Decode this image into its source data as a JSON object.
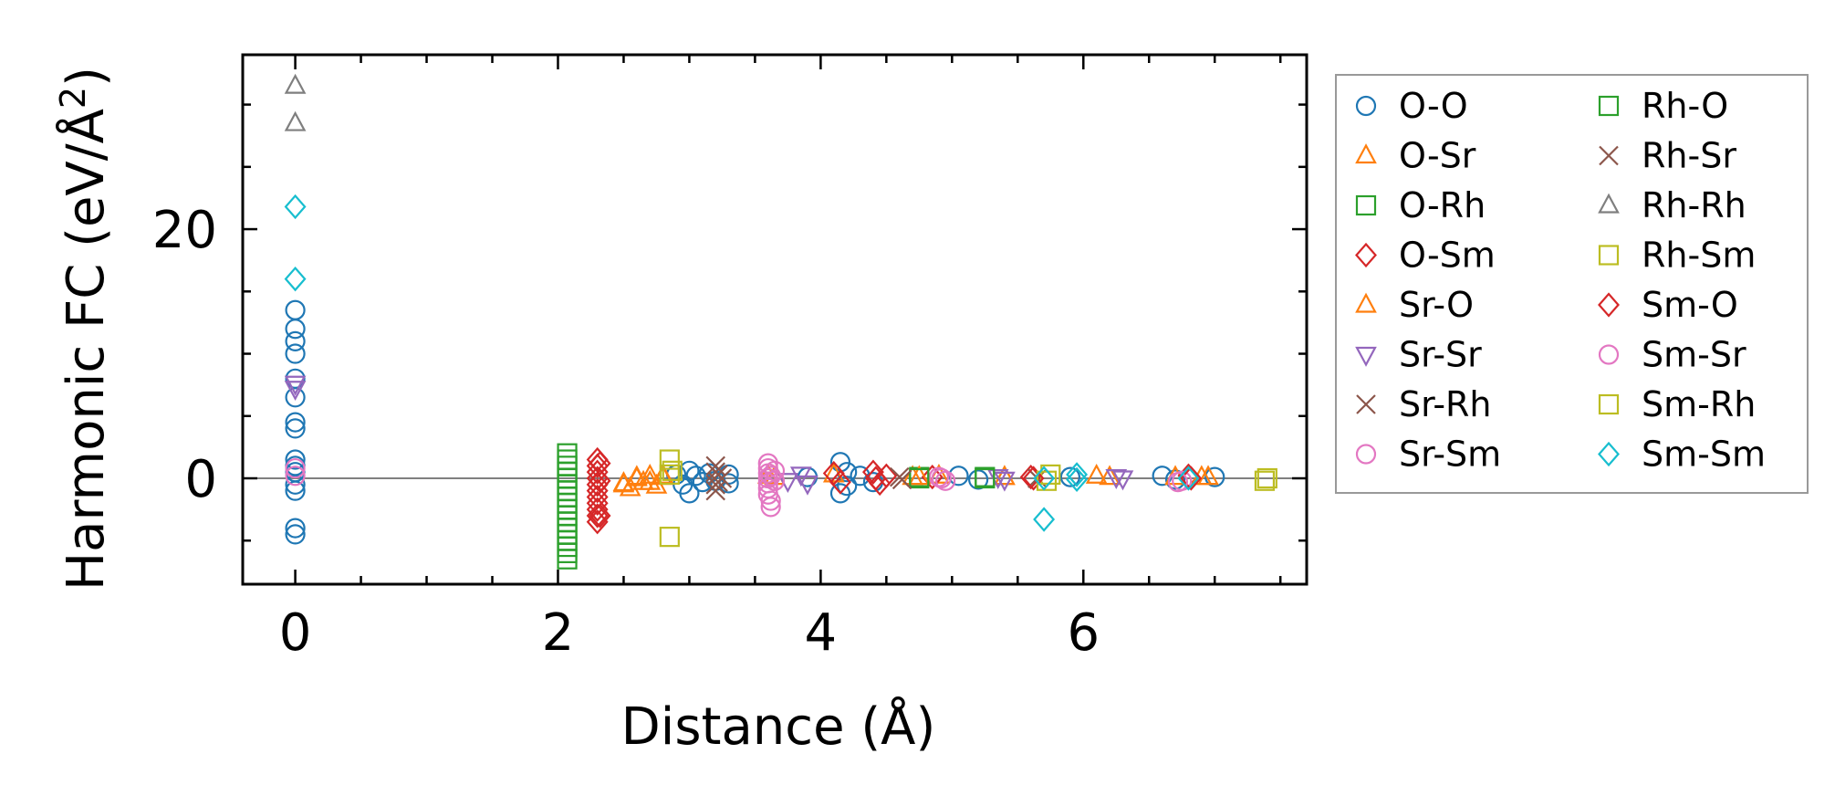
{
  "chart_data": {
    "type": "scatter",
    "title": "",
    "xlabel": "Distance (Å)",
    "ylabel_prefix": "Harmonic FC (eV/Å",
    "ylabel_sup": "2",
    "ylabel_suffix": ")",
    "xlim": [
      -0.4,
      7.7
    ],
    "ylim": [
      -8.5,
      34.0
    ],
    "xticks": [
      0,
      2,
      4,
      6
    ],
    "xtick_labels": [
      "0",
      "2",
      "4",
      "6"
    ],
    "yticks": [
      0,
      20
    ],
    "ytick_labels": [
      "0",
      "20"
    ],
    "x_minor_step": 0.5,
    "y_minor_step": 5,
    "zero_line": true,
    "legend_position": "outside-right",
    "series": [
      {
        "name": "O-O",
        "color": "#1f77b4",
        "marker": "circle",
        "points": [
          [
            0,
            13.5
          ],
          [
            0,
            12
          ],
          [
            0,
            11
          ],
          [
            0,
            10
          ],
          [
            0,
            8
          ],
          [
            0,
            6.5
          ],
          [
            0,
            4.5
          ],
          [
            0,
            4
          ],
          [
            0,
            1.5
          ],
          [
            0,
            1
          ],
          [
            0,
            0.5
          ],
          [
            0,
            -0.5
          ],
          [
            0,
            -1
          ],
          [
            0,
            -4
          ],
          [
            0,
            -4.5
          ],
          [
            2.9,
            0.3
          ],
          [
            2.95,
            -0.5
          ],
          [
            3.0,
            0.6
          ],
          [
            3.0,
            -1.2
          ],
          [
            3.05,
            0.2
          ],
          [
            3.1,
            -0.3
          ],
          [
            3.15,
            0.4
          ],
          [
            3.2,
            -0.2
          ],
          [
            3.3,
            0.3
          ],
          [
            3.3,
            -0.4
          ],
          [
            3.9,
            0.1
          ],
          [
            4.15,
            1.3
          ],
          [
            4.15,
            -1.2
          ],
          [
            4.2,
            0.5
          ],
          [
            4.2,
            -0.6
          ],
          [
            4.3,
            0.2
          ],
          [
            4.4,
            -0.3
          ],
          [
            5.05,
            0.2
          ],
          [
            5.2,
            -0.1
          ],
          [
            5.9,
            0.1
          ],
          [
            6.6,
            0.2
          ],
          [
            6.7,
            -0.1
          ],
          [
            7.0,
            0.1
          ]
        ]
      },
      {
        "name": "O-Sr",
        "color": "#ff7f0e",
        "marker": "triangle-up",
        "points": [
          [
            2.5,
            -0.5
          ],
          [
            2.55,
            -0.8
          ],
          [
            2.6,
            0.1
          ],
          [
            2.65,
            -0.3
          ],
          [
            2.7,
            0.2
          ],
          [
            2.75,
            -0.6
          ],
          [
            2.8,
            0.1
          ],
          [
            3.6,
            0.2
          ],
          [
            4.1,
            0.3
          ],
          [
            4.7,
            0.1
          ],
          [
            4.9,
            0.2
          ],
          [
            5.4,
            0.1
          ],
          [
            6.1,
            0.2
          ],
          [
            6.7,
            0.1
          ],
          [
            6.95,
            0.1
          ]
        ]
      },
      {
        "name": "O-Rh",
        "color": "#2ca02c",
        "marker": "square",
        "points": [
          [
            2.07,
            2.0
          ],
          [
            2.07,
            1.5
          ],
          [
            2.07,
            1.0
          ],
          [
            2.07,
            0.5
          ],
          [
            2.07,
            0.0
          ],
          [
            2.07,
            -0.5
          ],
          [
            2.07,
            -1.0
          ],
          [
            2.07,
            -1.5
          ],
          [
            2.07,
            -2.0
          ],
          [
            2.07,
            -2.5
          ],
          [
            2.07,
            -3.0
          ],
          [
            2.07,
            -3.5
          ],
          [
            2.07,
            -4.0
          ],
          [
            2.07,
            -4.5
          ],
          [
            2.07,
            -5.0
          ],
          [
            2.07,
            -5.5
          ],
          [
            2.07,
            -6.0
          ],
          [
            2.07,
            -6.5
          ],
          [
            4.75,
            0.1
          ],
          [
            5.25,
            0.1
          ]
        ]
      },
      {
        "name": "O-Sm",
        "color": "#d62728",
        "marker": "diamond",
        "points": [
          [
            2.3,
            1.5
          ],
          [
            2.3,
            1.0
          ],
          [
            2.3,
            0.5
          ],
          [
            2.3,
            0.0
          ],
          [
            2.3,
            -0.5
          ],
          [
            2.3,
            -1.0
          ],
          [
            2.3,
            -1.5
          ],
          [
            2.3,
            -2.0
          ],
          [
            2.3,
            -2.5
          ],
          [
            2.3,
            -3.0
          ],
          [
            2.3,
            -3.5
          ],
          [
            4.1,
            0.4
          ],
          [
            4.15,
            -0.3
          ],
          [
            4.4,
            0.5
          ],
          [
            4.45,
            -0.4
          ],
          [
            4.5,
            0.2
          ],
          [
            4.85,
            0.1
          ],
          [
            5.6,
            0.1
          ],
          [
            6.8,
            0.2
          ]
        ]
      },
      {
        "name": "Sr-O",
        "color": "#ff7f0e",
        "marker": "triangle-up",
        "points": [
          [
            2.5,
            -0.4
          ],
          [
            2.6,
            0.0
          ],
          [
            2.7,
            -0.3
          ],
          [
            2.8,
            0.2
          ],
          [
            3.65,
            0.1
          ],
          [
            4.75,
            0.1
          ],
          [
            5.4,
            0.1
          ],
          [
            6.2,
            0.1
          ],
          [
            6.9,
            0.1
          ]
        ]
      },
      {
        "name": "Sr-Sr",
        "color": "#9467bd",
        "marker": "triangle-down",
        "points": [
          [
            0,
            7.6
          ],
          [
            0,
            7.2
          ],
          [
            3.75,
            -0.2
          ],
          [
            3.85,
            0.3
          ],
          [
            3.9,
            -0.4
          ],
          [
            5.35,
            0.1
          ],
          [
            5.4,
            -0.1
          ],
          [
            6.25,
            0.1
          ],
          [
            6.3,
            0.0
          ]
        ]
      },
      {
        "name": "Sr-Rh",
        "color": "#8c564b",
        "marker": "x",
        "points": [
          [
            3.2,
            0.5
          ],
          [
            3.2,
            -0.5
          ],
          [
            3.2,
            1.0
          ],
          [
            3.2,
            -1.0
          ],
          [
            3.25,
            0.0
          ],
          [
            4.6,
            0.1
          ],
          [
            5.65,
            0.0
          ]
        ]
      },
      {
        "name": "Sr-Sm",
        "color": "#e377c2",
        "marker": "circle",
        "points": [
          [
            0,
            0.8
          ],
          [
            0,
            0.2
          ],
          [
            3.6,
            1.2
          ],
          [
            3.6,
            0.8
          ],
          [
            3.6,
            0.4
          ],
          [
            3.6,
            0.0
          ],
          [
            3.6,
            -0.4
          ],
          [
            3.6,
            -0.8
          ],
          [
            3.6,
            -1.3
          ],
          [
            3.62,
            -1.8
          ],
          [
            3.62,
            -2.3
          ],
          [
            3.65,
            0.6
          ],
          [
            3.65,
            -0.2
          ],
          [
            4.9,
            0.1
          ],
          [
            4.95,
            -0.2
          ],
          [
            6.75,
            -0.2
          ]
        ]
      },
      {
        "name": "Rh-O",
        "color": "#2ca02c",
        "marker": "square",
        "points": [
          [
            4.75,
            0.0
          ],
          [
            5.25,
            0.0
          ]
        ]
      },
      {
        "name": "Rh-Sr",
        "color": "#8c564b",
        "marker": "x",
        "points": [
          [
            3.22,
            0.3
          ],
          [
            3.22,
            -0.3
          ],
          [
            4.62,
            -0.1
          ]
        ]
      },
      {
        "name": "Rh-Rh",
        "color": "#7f7f7f",
        "marker": "triangle-up",
        "points": [
          [
            0,
            31.5
          ],
          [
            0,
            28.5
          ]
        ]
      },
      {
        "name": "Rh-Sm",
        "color": "#bcbd22",
        "marker": "square",
        "points": [
          [
            2.85,
            1.5
          ],
          [
            2.85,
            0.3
          ],
          [
            2.85,
            -4.7
          ],
          [
            5.75,
            0.3
          ],
          [
            7.4,
            0.0
          ]
        ]
      },
      {
        "name": "Sm-O",
        "color": "#d62728",
        "marker": "diamond",
        "points": [
          [
            2.32,
            1.2
          ],
          [
            2.32,
            -0.2
          ],
          [
            2.32,
            -3.0
          ],
          [
            4.42,
            0.0
          ],
          [
            5.62,
            0.0
          ],
          [
            6.82,
            0.0
          ]
        ]
      },
      {
        "name": "Sm-Sr",
        "color": "#e377c2",
        "marker": "circle",
        "points": [
          [
            3.62,
            0.2
          ],
          [
            4.92,
            0.0
          ],
          [
            6.72,
            -0.3
          ]
        ]
      },
      {
        "name": "Sm-Rh",
        "color": "#bcbd22",
        "marker": "square",
        "points": [
          [
            2.87,
            0.6
          ],
          [
            5.72,
            -0.2
          ],
          [
            7.38,
            -0.2
          ]
        ]
      },
      {
        "name": "Sm-Sm",
        "color": "#17becf",
        "marker": "diamond",
        "points": [
          [
            0,
            21.8
          ],
          [
            0,
            16.0
          ],
          [
            5.7,
            0.0
          ],
          [
            5.7,
            -3.3
          ],
          [
            5.95,
            0.3
          ],
          [
            5.95,
            -0.1
          ],
          [
            6.8,
            0.0
          ]
        ]
      }
    ]
  }
}
